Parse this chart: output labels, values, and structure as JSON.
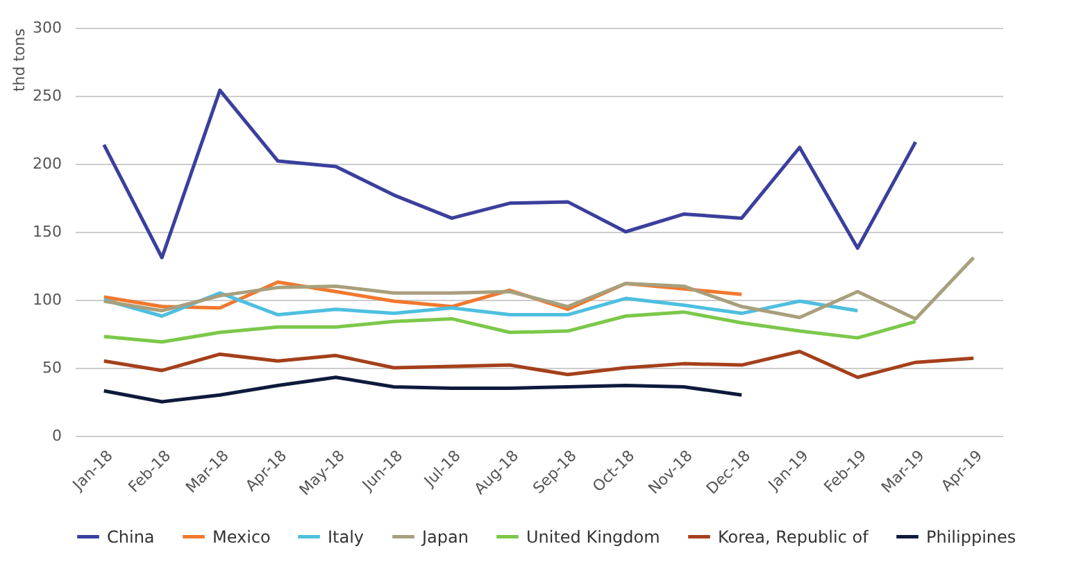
{
  "chart_data": {
    "type": "line",
    "ylabel": "thd tons",
    "categories": [
      "Jan-18",
      "Feb-18",
      "Mar-18",
      "Apr-18",
      "May-18",
      "Jun-18",
      "Jul-18",
      "Aug-18",
      "Sep-18",
      "Oct-18",
      "Nov-18",
      "Dec-18",
      "Jan-19",
      "Feb-19",
      "Mar-19",
      "Apr-19"
    ],
    "series": [
      {
        "name": "China",
        "color": "#3b3f9c",
        "values": [
          214,
          131,
          254,
          202,
          198,
          177,
          160,
          171,
          172,
          150,
          163,
          160,
          212,
          138,
          216,
          null
        ]
      },
      {
        "name": "Mexico",
        "color": "#f0782e",
        "values": [
          102,
          95,
          94,
          113,
          106,
          99,
          95,
          107,
          93,
          112,
          108,
          104,
          null,
          null,
          null,
          null
        ]
      },
      {
        "name": "Italy",
        "color": "#4ebfe0",
        "values": [
          100,
          88,
          105,
          89,
          93,
          90,
          94,
          89,
          89,
          101,
          96,
          90,
          99,
          92,
          null,
          null
        ]
      },
      {
        "name": "Japan",
        "color": "#a89f7d",
        "values": [
          99,
          92,
          103,
          109,
          110,
          105,
          105,
          106,
          95,
          112,
          110,
          95,
          87,
          106,
          86,
          131
        ]
      },
      {
        "name": "United Kingdom",
        "color": "#7cc84a",
        "values": [
          73,
          69,
          76,
          80,
          80,
          84,
          86,
          76,
          77,
          88,
          91,
          83,
          77,
          72,
          84,
          null
        ]
      },
      {
        "name": "Korea, Republic of",
        "color": "#a4401b",
        "values": [
          55,
          48,
          60,
          55,
          59,
          50,
          51,
          52,
          45,
          50,
          53,
          52,
          62,
          43,
          54,
          57
        ]
      },
      {
        "name": "Philippines",
        "color": "#0e1a3c",
        "values": [
          33,
          25,
          30,
          37,
          43,
          36,
          35,
          35,
          36,
          37,
          36,
          30,
          null,
          null,
          null,
          null
        ]
      }
    ],
    "ylim": [
      0,
      300
    ],
    "yticks": [
      0,
      50,
      100,
      150,
      200,
      250,
      300
    ],
    "grid": "y",
    "legend": "bottom"
  }
}
